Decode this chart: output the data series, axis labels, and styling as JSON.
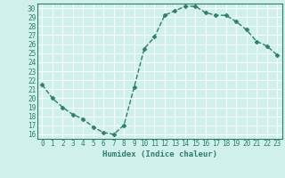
{
  "x": [
    0,
    1,
    2,
    3,
    4,
    5,
    6,
    7,
    8,
    9,
    10,
    11,
    12,
    13,
    14,
    15,
    16,
    17,
    18,
    19,
    20,
    21,
    22,
    23
  ],
  "y": [
    21.5,
    20.0,
    19.0,
    18.2,
    17.7,
    16.8,
    16.2,
    16.0,
    17.0,
    21.2,
    25.5,
    26.8,
    29.2,
    29.7,
    30.2,
    30.2,
    29.5,
    29.2,
    29.2,
    28.5,
    27.6,
    26.3,
    25.8,
    24.8
  ],
  "line_color": "#2e7d6e",
  "marker": "D",
  "marker_size": 2.5,
  "xlabel": "Humidex (Indice chaleur)",
  "xlim": [
    -0.5,
    23.5
  ],
  "ylim": [
    15.5,
    30.5
  ],
  "yticks": [
    16,
    17,
    18,
    19,
    20,
    21,
    22,
    23,
    24,
    25,
    26,
    27,
    28,
    29,
    30
  ],
  "xticks": [
    0,
    1,
    2,
    3,
    4,
    5,
    6,
    7,
    8,
    9,
    10,
    11,
    12,
    13,
    14,
    15,
    16,
    17,
    18,
    19,
    20,
    21,
    22,
    23
  ],
  "background_color": "#cff0eb",
  "plot_bg_color": "#cff0eb",
  "grid_color": "#aaddcc",
  "tick_fontsize": 5.5,
  "xlabel_fontsize": 6.5,
  "line_width": 1.0
}
